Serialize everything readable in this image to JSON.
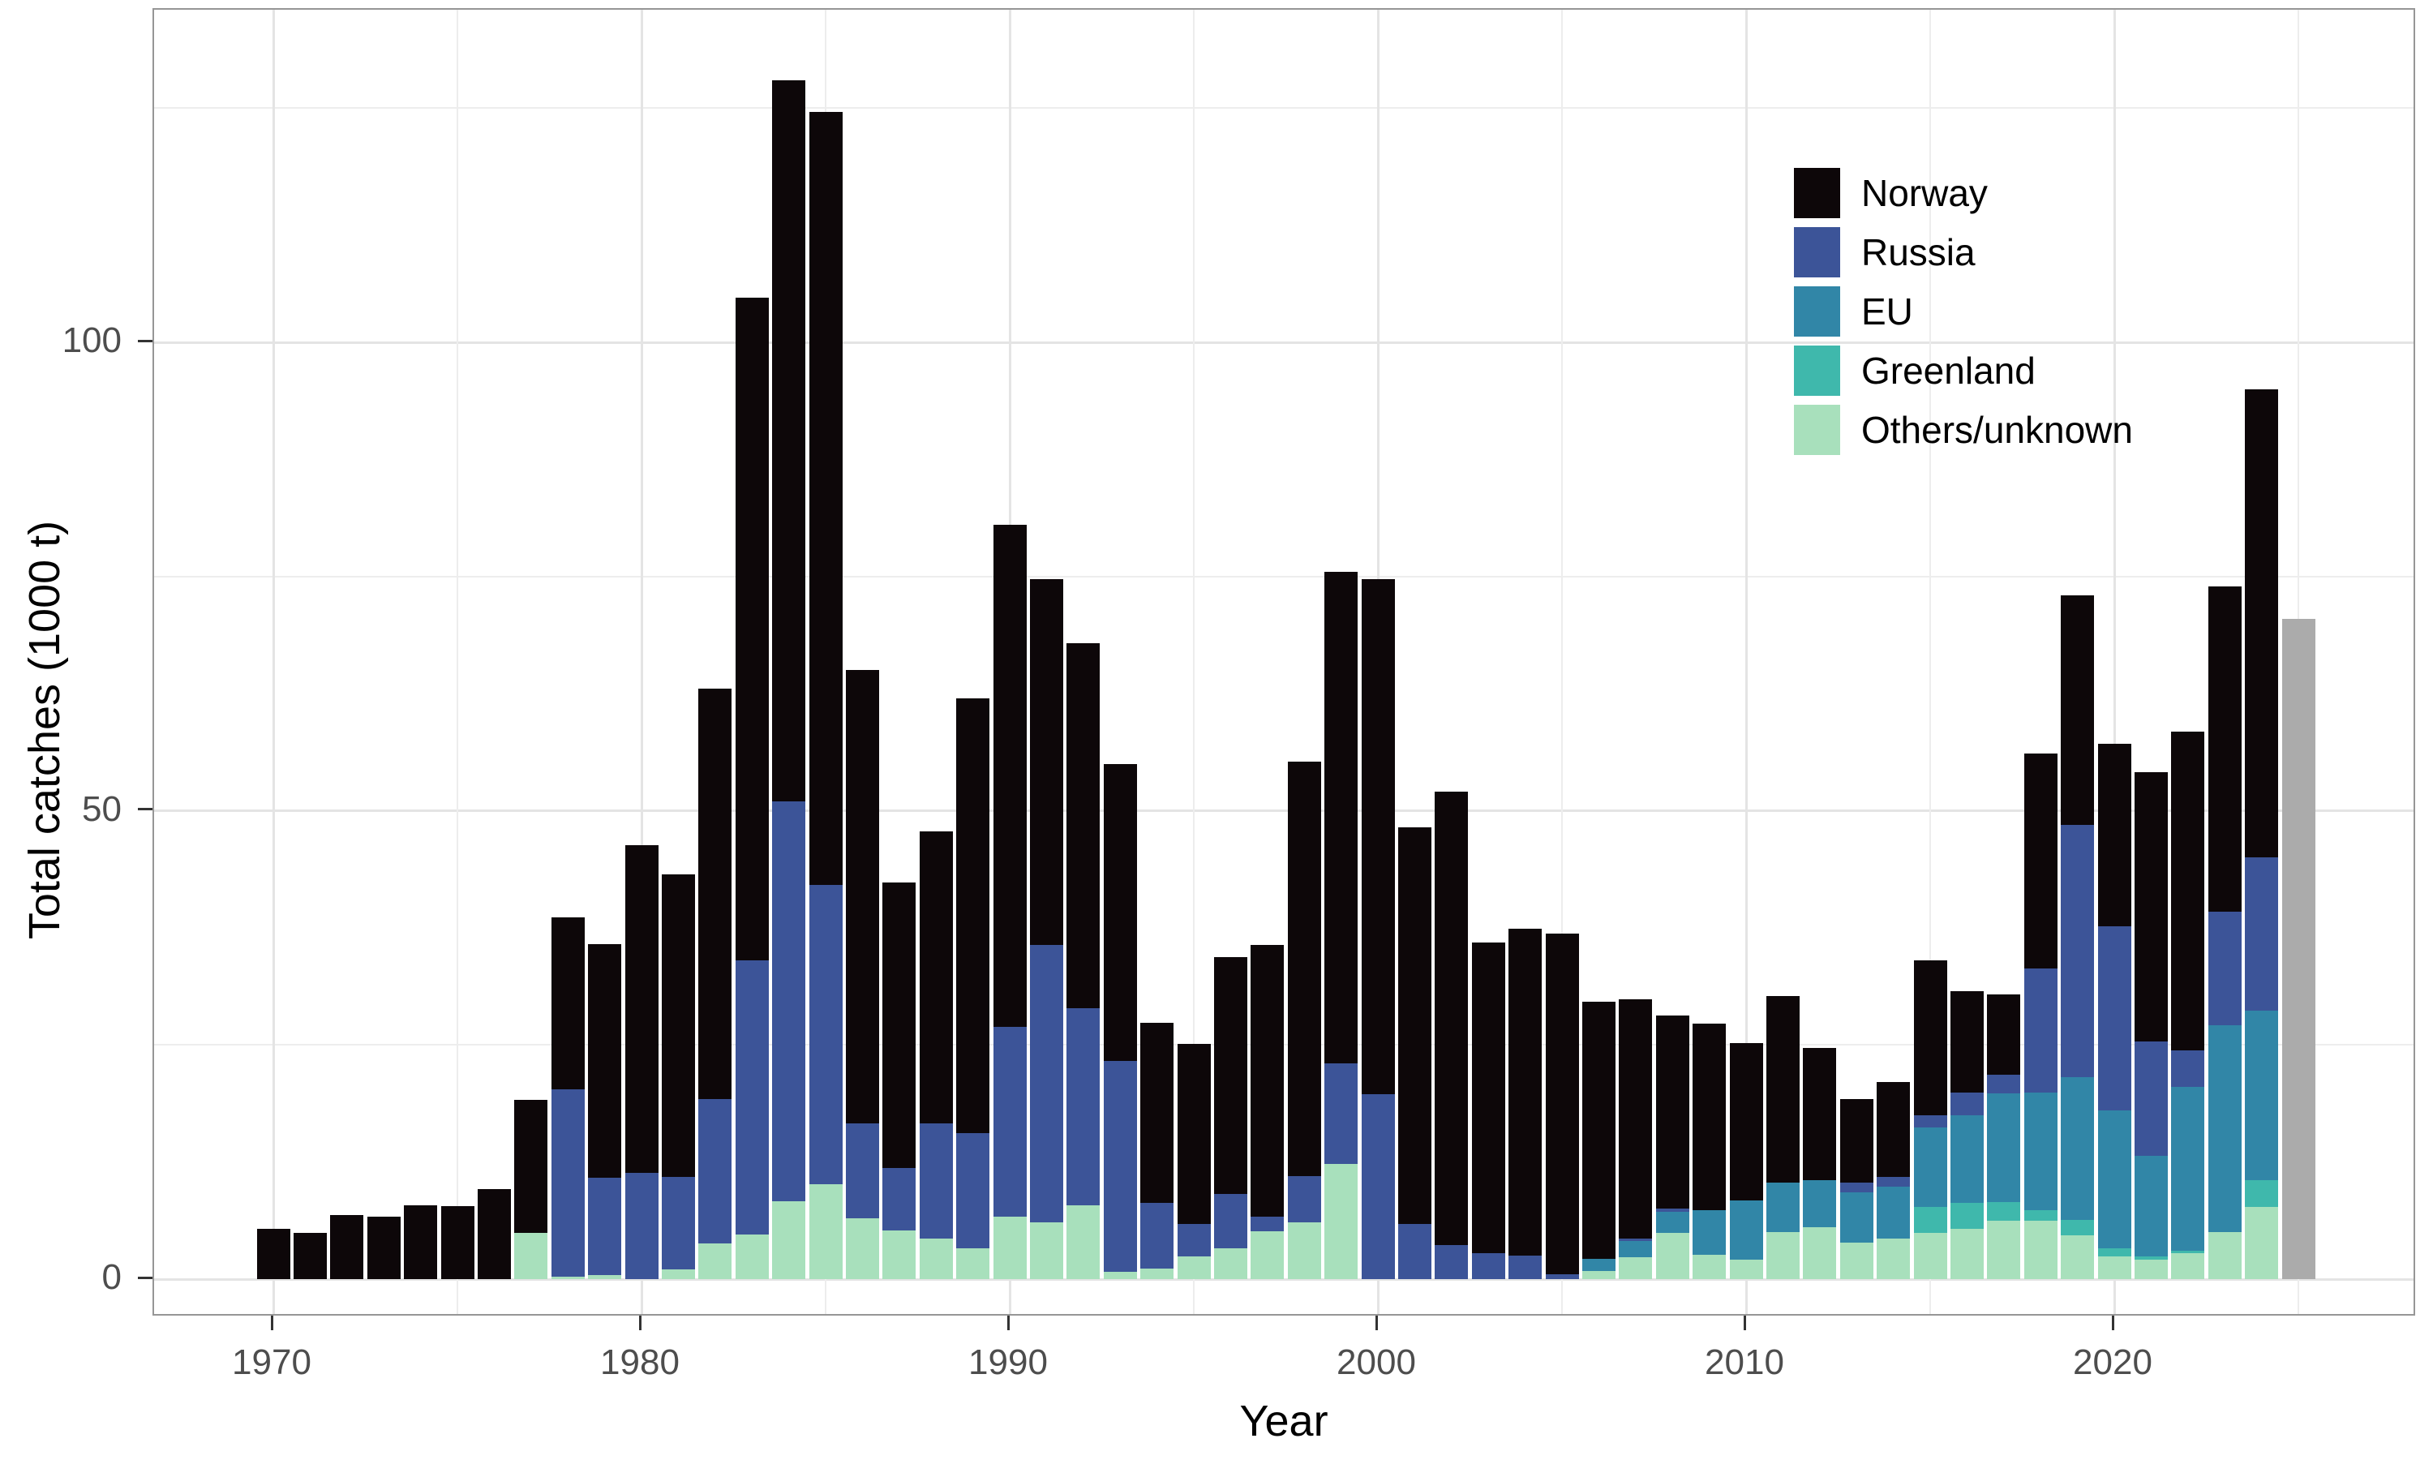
{
  "chart_data": {
    "type": "bar",
    "stacked": true,
    "xlabel": "Year",
    "ylabel": "Total catches (1000 t)",
    "x_tick_labels": [
      1970,
      1980,
      1990,
      2000,
      2010,
      2020
    ],
    "y_tick_labels": [
      0,
      50,
      100
    ],
    "grid_major_x": [
      1970,
      1980,
      1990,
      2000,
      2010,
      2020
    ],
    "grid_minor_x": [
      1975,
      1985,
      1995,
      2005,
      2015,
      2025
    ],
    "grid_major_y": [
      0,
      50,
      100
    ],
    "grid_minor_y": [
      25,
      75,
      125
    ],
    "ylim": [
      0,
      135.5
    ],
    "xlim": [
      1966.8,
      2028.2
    ],
    "grid": true,
    "legend_position": "top-right-inside",
    "years": [
      1970,
      1971,
      1972,
      1973,
      1974,
      1975,
      1976,
      1977,
      1978,
      1979,
      1980,
      1981,
      1982,
      1983,
      1984,
      1985,
      1986,
      1987,
      1988,
      1989,
      1990,
      1991,
      1992,
      1993,
      1994,
      1995,
      1996,
      1997,
      1998,
      1999,
      2000,
      2001,
      2002,
      2003,
      2004,
      2005,
      2006,
      2007,
      2008,
      2009,
      2010,
      2011,
      2012,
      2013,
      2014,
      2015,
      2016,
      2017,
      2018,
      2019,
      2020,
      2021,
      2022,
      2023,
      2024
    ],
    "series": [
      {
        "name": "Norway",
        "color": "#0d0709",
        "values": [
          5.4,
          4.9,
          6.8,
          6.7,
          7.9,
          7.8,
          9.6,
          14.2,
          18.3,
          25.0,
          35.0,
          32.3,
          43.8,
          70.8,
          77.0,
          82.5,
          48.4,
          30.4,
          31.2,
          46.4,
          53.6,
          39.0,
          39.0,
          31.7,
          19.3,
          19.2,
          25.3,
          29.0,
          44.2,
          52.5,
          55.0,
          42.3,
          48.4,
          33.1,
          34.9,
          36.4,
          27.4,
          25.6,
          20.6,
          19.9,
          16.8,
          19.9,
          14.1,
          8.9,
          10.1,
          16.5,
          10.8,
          8.6,
          22.9,
          24.5,
          19.4,
          28.7,
          34.0,
          34.7,
          50.0
        ]
      },
      {
        "name": "Russia",
        "color": "#3c5498",
        "values": [
          0,
          0,
          0,
          0,
          0,
          0,
          0,
          0,
          20.0,
          10.4,
          11.3,
          9.9,
          15.4,
          29.2,
          42.7,
          32.0,
          10.1,
          6.7,
          12.3,
          12.3,
          20.2,
          29.6,
          21.0,
          22.5,
          7.0,
          3.5,
          5.8,
          1.6,
          4.9,
          10.7,
          19.7,
          5.9,
          3.6,
          2.8,
          2.5,
          0.5,
          0,
          0.2,
          0.3,
          0,
          0,
          0,
          0,
          1.0,
          1.0,
          1.3,
          2.4,
          2.0,
          13.3,
          26.9,
          19.7,
          12.2,
          3.9,
          12.1,
          16.3
        ]
      },
      {
        "name": "EU",
        "color": "#3186a7",
        "values": [
          0,
          0,
          0,
          0,
          0,
          0,
          0,
          0,
          0,
          0,
          0,
          0,
          0,
          0,
          0,
          0,
          0,
          0,
          0,
          0,
          0,
          0,
          0,
          0,
          0,
          0,
          0,
          0,
          0,
          0,
          0,
          0,
          0,
          0,
          0,
          0,
          1.3,
          1.8,
          2.3,
          4.8,
          6.3,
          5.3,
          5.1,
          5.4,
          5.6,
          8.5,
          9.4,
          11.6,
          12.5,
          15.3,
          14.7,
          10.8,
          17.5,
          22.1,
          18.1
        ]
      },
      {
        "name": "Greenland",
        "color": "#3fb8ac",
        "values": [
          0,
          0,
          0,
          0,
          0,
          0,
          0,
          0,
          0,
          0,
          0,
          0,
          0,
          0,
          0,
          0,
          0,
          0,
          0,
          0,
          0,
          0,
          0,
          0,
          0,
          0,
          0,
          0,
          0,
          0,
          0,
          0,
          0,
          0,
          0,
          0,
          0,
          0,
          0,
          0,
          0,
          0,
          0,
          0,
          0,
          2.8,
          2.7,
          2.0,
          1.2,
          1.6,
          0.9,
          0.3,
          0.2,
          0,
          2.9
        ]
      },
      {
        "name": "Others/unknown",
        "color": "#a8e0bc",
        "values": [
          0,
          0,
          0,
          0,
          0,
          0,
          0,
          4.9,
          0.3,
          0.4,
          0,
          1.0,
          3.8,
          4.8,
          8.3,
          10.1,
          6.5,
          5.2,
          4.3,
          3.3,
          6.7,
          6.1,
          7.9,
          0.8,
          1.1,
          2.4,
          3.3,
          5.1,
          6.1,
          12.3,
          0,
          0,
          0,
          0,
          0,
          0,
          0.9,
          2.3,
          4.9,
          2.6,
          2.1,
          5.0,
          5.5,
          3.9,
          4.3,
          4.9,
          5.4,
          6.2,
          6.2,
          4.7,
          2.4,
          2.1,
          2.8,
          5.0,
          7.7
        ]
      }
    ],
    "extra_bar": {
      "year": 2025,
      "value": 70.5,
      "color": "#ababab"
    },
    "legend": [
      "Norway",
      "Russia",
      "EU",
      "Greenland",
      "Others/unknown"
    ]
  }
}
